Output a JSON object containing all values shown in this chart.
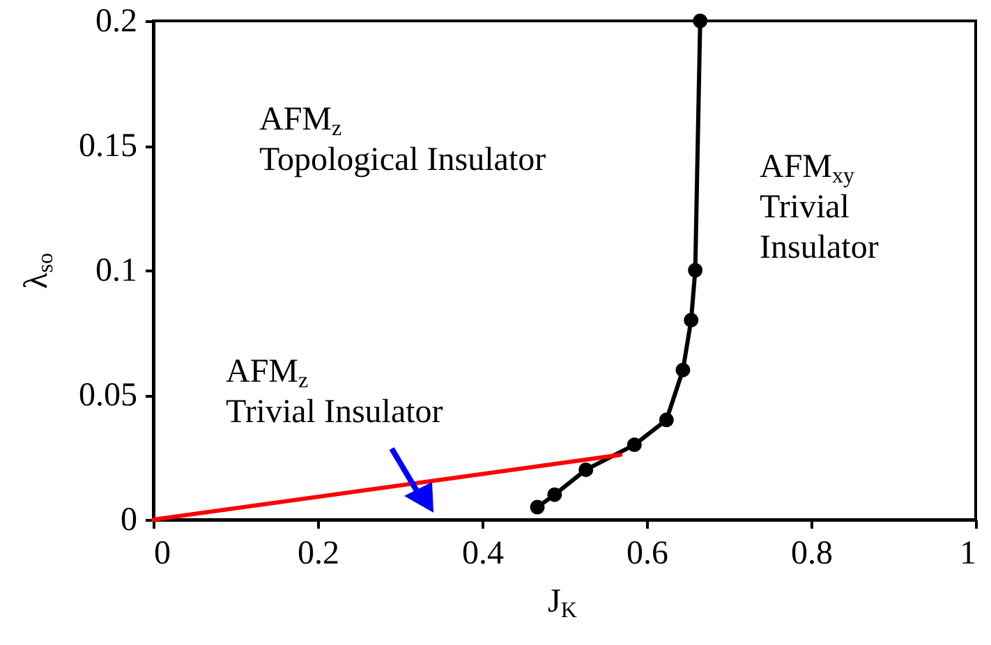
{
  "chart_data": {
    "type": "line",
    "xlabel": "J$_{K}$",
    "ylabel": "λ$_{so}$",
    "xlim": [
      0,
      1
    ],
    "xticks": [
      0,
      0.2,
      0.4,
      0.6,
      0.8,
      1
    ],
    "ylim": [
      0,
      0.2
    ],
    "yticks": [
      0,
      0.05,
      0.1,
      0.15,
      0.2
    ],
    "grid": false,
    "series": [
      {
        "color": "#000000",
        "marker": "circle",
        "x": [
          0.467,
          0.488,
          0.526,
          0.585,
          0.624,
          0.644,
          0.654,
          0.659,
          0.665
        ],
        "values": [
          0.005,
          0.01,
          0.02,
          0.03,
          0.04,
          0.06,
          0.08,
          0.1,
          0.2
        ]
      },
      {
        "color": "#ff0000",
        "marker": "none",
        "x": [
          0,
          0.568
        ],
        "values": [
          0,
          0.026
        ]
      }
    ],
    "annotations": [
      "AFM$_{z}$\nTopological Insulator",
      "AFM$_{xy}$\nTrivial\nInsulator",
      "AFM$_{z}$\nTrivial Insulator"
    ]
  }
}
